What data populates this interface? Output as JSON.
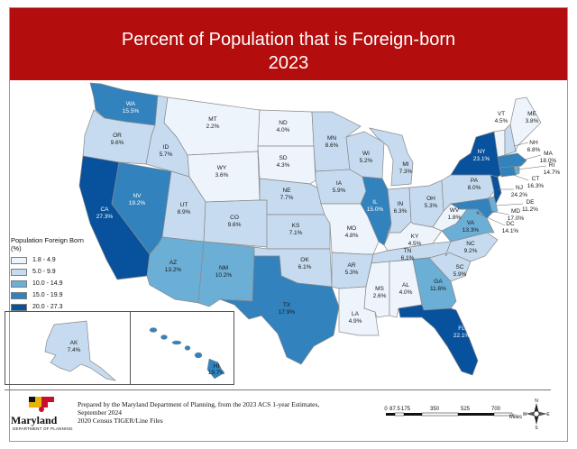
{
  "title": {
    "line1": "Percent of Population that is Foreign-born",
    "line2": "2023"
  },
  "legend": {
    "title": "Population Foreign Born",
    "unit": "(%)",
    "classes": [
      {
        "range": "1.8 - 4.9",
        "color": "#eef4fb"
      },
      {
        "range": "5.0 - 9.9",
        "color": "#c6dbef"
      },
      {
        "range": "10.0 - 14.9",
        "color": "#6baed6"
      },
      {
        "range": "15.0 - 19.9",
        "color": "#3182bd"
      },
      {
        "range": "20.0 - 27.3",
        "color": "#08519c"
      }
    ]
  },
  "states": {
    "WA": "15.5%",
    "OR": "9.6%",
    "CA": "27.3%",
    "NV": "19.2%",
    "ID": "5.7%",
    "MT": "2.2%",
    "WY": "3.6%",
    "UT": "8.9%",
    "CO": "9.6%",
    "AZ": "13.2%",
    "NM": "10.2%",
    "ND": "4.0%",
    "SD": "4.3%",
    "NE": "7.7%",
    "KS": "7.1%",
    "OK": "6.1%",
    "TX": "17.9%",
    "MN": "8.6%",
    "IA": "5.9%",
    "MO": "4.8%",
    "AR": "5.3%",
    "LA": "4.9%",
    "WI": "5.2%",
    "IL": "15.0%",
    "MS": "2.6%",
    "MI": "7.3%",
    "IN": "6.3%",
    "KY": "4.5%",
    "TN": "6.1%",
    "AL": "4.0%",
    "OH": "5.3%",
    "GA": "11.6%",
    "FL": "22.1%",
    "SC": "5.9%",
    "NC": "9.2%",
    "VA": "13.3%",
    "WV": "1.8%",
    "PA": "8.0%",
    "NY": "23.1%",
    "VT": "4.5%",
    "NH": "6.8%",
    "ME": "3.8%",
    "MA": "18.0%",
    "RI": "14.7%",
    "CT": "16.3%",
    "NJ": "24.2%",
    "DE": "11.2%",
    "MD": "17.0%",
    "DC": "14.1%",
    "AK": "7.4%",
    "HI": "19.7%"
  },
  "credit": {
    "line1": "Prepared by the Maryland Department of Planning, from the 2023 ACS 1-year Estimates,",
    "line2": "September 2024",
    "line3": "2020 Census TIGER/Line Files"
  },
  "logo": {
    "name": "Maryland",
    "sub": "DEPARTMENT OF PLANNING"
  },
  "scale": {
    "ticks": [
      "0",
      "87.5",
      "175",
      "350",
      "525",
      "700"
    ],
    "unit": "Miles"
  },
  "compass": {
    "n": "N",
    "s": "S",
    "e": "E",
    "w": "W"
  }
}
